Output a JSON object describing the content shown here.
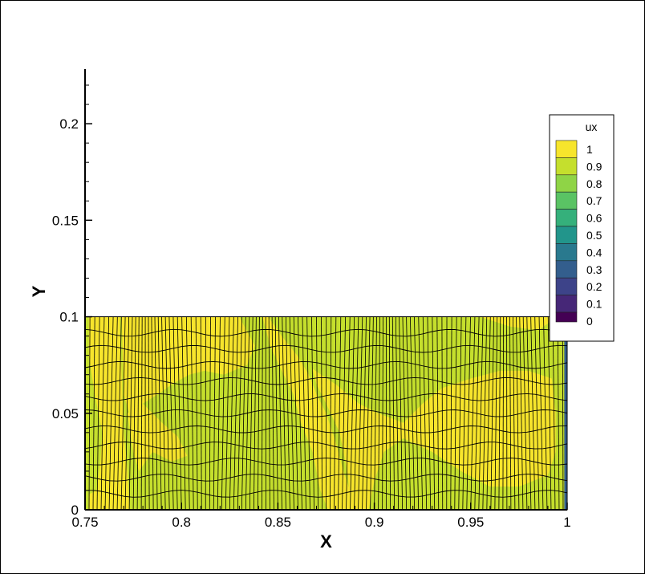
{
  "chart_data": {
    "type": "heatmap",
    "title": "",
    "xlabel": "X",
    "ylabel": "Y",
    "xlim": [
      0.75,
      1.0
    ],
    "ylim": [
      0,
      0.225
    ],
    "x_ticks": [
      0.75,
      0.8,
      0.85,
      0.9,
      0.95,
      1.0
    ],
    "x_tick_labels": [
      "0.75",
      "0.8",
      "0.85",
      "0.9",
      "0.95",
      "1"
    ],
    "y_ticks": [
      0,
      0.05,
      0.1,
      0.15,
      0.2
    ],
    "y_tick_labels": [
      "0",
      "0.05",
      "0.1",
      "0.15",
      "0.2"
    ],
    "domain": {
      "x": [
        0.75,
        1.0
      ],
      "y": [
        0,
        0.1
      ]
    },
    "variable": "ux",
    "legend": {
      "title": "ux",
      "position": "right",
      "levels": [
        1,
        0.9,
        0.8,
        0.7,
        0.6,
        0.5,
        0.4,
        0.3,
        0.2,
        0.1,
        0
      ],
      "level_labels": [
        "1",
        "0.9",
        "0.8",
        "0.7",
        "0.6",
        "0.5",
        "0.4",
        "0.3",
        "0.2",
        "0.1",
        "0"
      ],
      "colors": [
        "#f7e52c",
        "#c5df2d",
        "#8fd446",
        "#5ac364",
        "#35b07b",
        "#22958b",
        "#29798e",
        "#335e8d",
        "#3d4389",
        "#462777",
        "#440154"
      ]
    },
    "mesh": {
      "x_divisions": 120,
      "y_divisions": 12
    },
    "ux_regions": [
      {
        "ux": 0.9,
        "x_range": [
          0.75,
          0.752
        ],
        "y_range": [
          0,
          0.1
        ]
      },
      {
        "ux": 1.0,
        "x_range": [
          0.752,
          0.769
        ],
        "y_range": [
          0.01,
          0.04
        ]
      },
      {
        "ux": 1.0,
        "x_range": [
          0.769,
          0.84
        ],
        "y_range": [
          0.07,
          0.1
        ]
      },
      {
        "ux": 1.0,
        "x_range": [
          0.86,
          0.89
        ],
        "y_range": [
          0,
          0.07
        ]
      },
      {
        "ux": 1.0,
        "x_range": [
          0.9,
          0.99
        ],
        "y_range": [
          0.02,
          0.07
        ]
      },
      {
        "ux": 0.9,
        "x_range": [
          0.77,
          0.86
        ],
        "y_range": [
          0,
          0.06
        ]
      },
      {
        "ux": 0.9,
        "x_range": [
          0.84,
          1.0
        ],
        "y_range": [
          0.075,
          0.1
        ]
      },
      {
        "ux": 0.9,
        "x_range": [
          0.905,
          0.93
        ],
        "y_range": [
          0,
          0.04
        ]
      },
      {
        "ux": 0.3,
        "x_range": [
          0.997,
          1.0
        ],
        "y_range": [
          0,
          0.1
        ]
      }
    ]
  }
}
